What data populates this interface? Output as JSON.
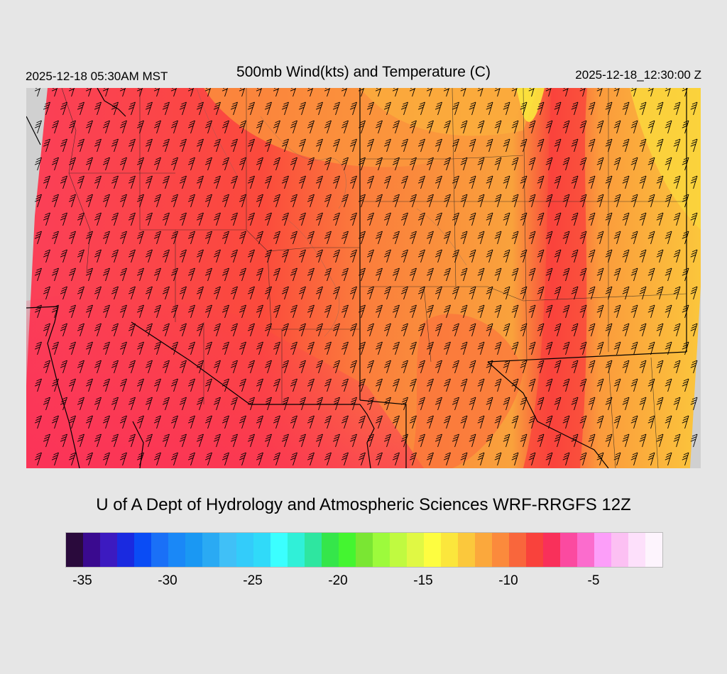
{
  "header": {
    "local_time": "2025-12-18 05:30AM MST",
    "title": "500mb Wind(kts) and Temperature (C)",
    "utc_time": "2025-12-18_12:30:00 Z"
  },
  "footer": {
    "credit": "U of A Dept of Hydrology and Atmospheric Sciences WRF-RRGFS 12Z"
  },
  "colorbar": {
    "colors": [
      "#2a0a3c",
      "#3a0a8f",
      "#3c1ac0",
      "#1a2ae0",
      "#0a4cf5",
      "#1a70f7",
      "#1a88f7",
      "#1a98f3",
      "#2aaaf3",
      "#40c0f7",
      "#33ccfa",
      "#30daf9",
      "#3bffff",
      "#30f0d8",
      "#2ee6a0",
      "#35e64a",
      "#44f530",
      "#7ae633",
      "#9dfa3c",
      "#c0fa40",
      "#e0f844",
      "#fdfd40",
      "#fbe63c",
      "#fbc83c",
      "#fba83c",
      "#fb8a3c",
      "#f9663c",
      "#f9423c",
      "#f9305a",
      "#fb4aa0",
      "#fb6ccd",
      "#fc9ef9",
      "#fcc0f3",
      "#fde0fb",
      "#fdf4fd"
    ],
    "tick_labels": [
      "-35",
      "-30",
      "-25",
      "-20",
      "-15",
      "-10",
      "-5"
    ],
    "tick_values": [
      -35,
      -30,
      -25,
      -20,
      -15,
      -10,
      -5
    ],
    "min": -36,
    "max": -1
  }
}
